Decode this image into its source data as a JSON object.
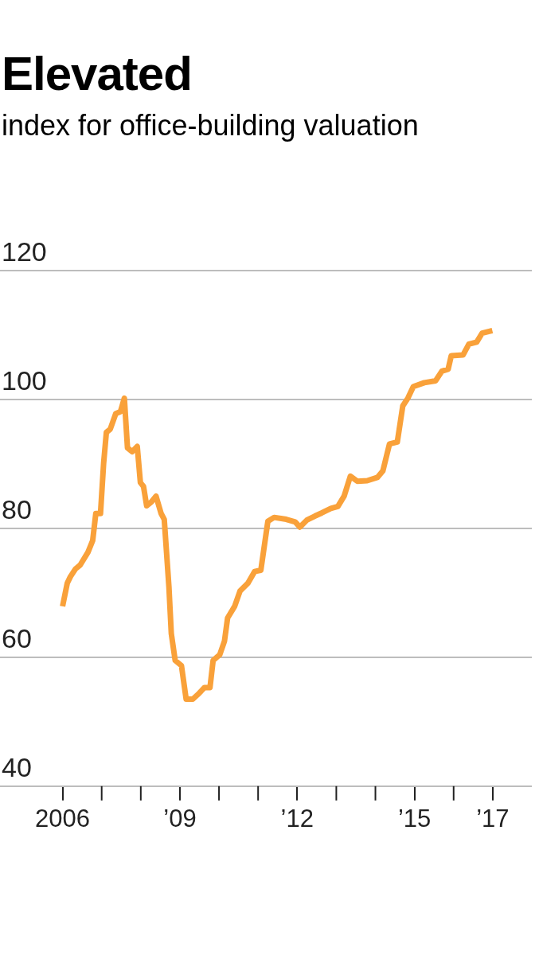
{
  "chart_data": {
    "type": "line",
    "title": "Elevated",
    "subtitle": "index for office-building valuation",
    "x": [
      2006.0,
      2006.12,
      2006.2,
      2006.33,
      2006.45,
      2006.65,
      2006.77,
      2006.85,
      2006.97,
      2007.05,
      2007.12,
      2007.22,
      2007.36,
      2007.48,
      2007.58,
      2007.66,
      2007.78,
      2007.91,
      2007.99,
      2008.07,
      2008.15,
      2008.27,
      2008.39,
      2008.52,
      2008.6,
      2008.72,
      2008.78,
      2008.88,
      2009.04,
      2009.16,
      2009.33,
      2009.49,
      2009.63,
      2009.77,
      2009.85,
      2010.02,
      2010.14,
      2010.22,
      2010.4,
      2010.54,
      2010.74,
      2010.91,
      2011.07,
      2011.25,
      2011.41,
      2011.72,
      2011.95,
      2012.07,
      2012.25,
      2012.45,
      2012.63,
      2012.86,
      2013.04,
      2013.2,
      2013.36,
      2013.54,
      2013.79,
      2014.05,
      2014.19,
      2014.36,
      2014.56,
      2014.7,
      2014.83,
      2014.97,
      2015.25,
      2015.54,
      2015.7,
      2015.86,
      2015.94,
      2016.24,
      2016.39,
      2016.59,
      2016.73,
      2016.99
    ],
    "series": [
      {
        "color": "#f9a13a",
        "values": [
          67.9,
          71.5,
          72.5,
          73.7,
          74.3,
          76.3,
          78.1,
          82.3,
          82.3,
          90.1,
          94.9,
          95.4,
          97.8,
          98.1,
          100.2,
          92.5,
          91.9,
          92.7,
          87.1,
          86.5,
          83.5,
          84.1,
          85.0,
          82.3,
          81.4,
          70.9,
          63.7,
          59.5,
          58.7,
          53.5,
          53.5,
          54.4,
          55.3,
          55.3,
          59.5,
          60.4,
          62.5,
          66.1,
          67.9,
          70.3,
          71.5,
          73.3,
          73.5,
          81.1,
          81.7,
          81.4,
          81.0,
          80.2,
          81.3,
          81.9,
          82.4,
          83.1,
          83.4,
          85.0,
          88.1,
          87.3,
          87.4,
          87.9,
          88.9,
          93.1,
          93.4,
          99.0,
          100.2,
          102.0,
          102.6,
          102.9,
          104.4,
          104.7,
          106.8,
          106.9,
          108.6,
          108.9,
          110.3,
          110.7
        ]
      }
    ],
    "xlim": [
      2004.4,
      2018
    ],
    "xticks": [
      {
        "value": 2006,
        "label": "2006"
      },
      {
        "value": 2009,
        "label": "’09"
      },
      {
        "value": 2012,
        "label": "’12"
      },
      {
        "value": 2015,
        "label": "’15"
      },
      {
        "value": 2017,
        "label": "’17"
      }
    ],
    "ylim": [
      40,
      120
    ],
    "yticks": [
      40,
      60,
      80,
      100,
      120
    ],
    "grid": "y",
    "legend": false,
    "marker": "none",
    "line_style": "solid"
  }
}
